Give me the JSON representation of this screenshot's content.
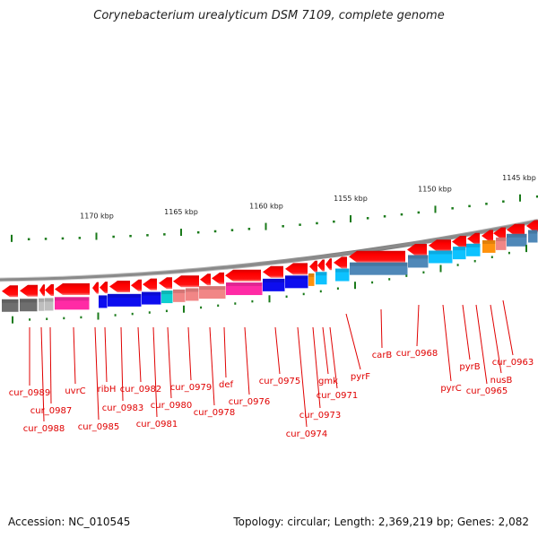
{
  "title": "Corynebacterium urealyticum DSM 7109, complete genome",
  "footer": {
    "accession": "Accession: NC_010545",
    "summary": "Topology: circular; Length: 2,369,219 bp; Genes: 2,082"
  },
  "colors": {
    "gene_arrow": "#ff0000",
    "backbone": "#8a8a8a",
    "tick": "#1a7a1a",
    "label": "#e00000"
  },
  "scale": {
    "unit": "kbp",
    "labels": [
      {
        "text": "1170 kbp",
        "value": 1170
      },
      {
        "text": "1165 kbp",
        "value": 1165
      },
      {
        "text": "1160 kbp",
        "value": 1160
      },
      {
        "text": "1155 kbp",
        "value": 1155
      },
      {
        "text": "1150 kbp",
        "value": 1150
      },
      {
        "text": "1145 kbp",
        "value": 1145
      }
    ]
  },
  "cog_bands": [
    {
      "color": "#666666"
    },
    {
      "color": "#666666"
    },
    {
      "color": "#bbbbbb"
    },
    {
      "color": "#bbbbbb"
    },
    {
      "color": "#ff1fa0"
    },
    {
      "color": "#0000ee"
    },
    {
      "color": "#0000ee"
    },
    {
      "color": "#0000ee"
    },
    {
      "color": "#00cccc"
    },
    {
      "color": "#f08080"
    },
    {
      "color": "#f08080"
    },
    {
      "color": "#f08080"
    },
    {
      "color": "#ff1fa0"
    },
    {
      "color": "#0000ee"
    },
    {
      "color": "#0000ee"
    },
    {
      "color": "#ff8c00"
    },
    {
      "color": "#00bfff"
    },
    {
      "color": "#00bfff"
    },
    {
      "color": "#4682b4"
    },
    {
      "color": "#4682b4"
    },
    {
      "color": "#00bfff"
    },
    {
      "color": "#00bfff"
    },
    {
      "color": "#00bfff"
    },
    {
      "color": "#ff8c00"
    },
    {
      "color": "#f08080"
    },
    {
      "color": "#4682b4"
    },
    {
      "color": "#4682b4"
    }
  ],
  "genes": [
    {
      "name": "cur_0989"
    },
    {
      "name": "cur_0988"
    },
    {
      "name": "cur_0987"
    },
    {
      "name": "uvrC"
    },
    {
      "name": "cur_0985"
    },
    {
      "name": "ribH"
    },
    {
      "name": "cur_0983"
    },
    {
      "name": "cur_0982"
    },
    {
      "name": "cur_0981"
    },
    {
      "name": "cur_0980"
    },
    {
      "name": "cur_0979"
    },
    {
      "name": "cur_0978"
    },
    {
      "name": "def"
    },
    {
      "name": "cur_0976"
    },
    {
      "name": "cur_0975"
    },
    {
      "name": "cur_0974"
    },
    {
      "name": "cur_0973"
    },
    {
      "name": "gmk"
    },
    {
      "name": "cur_0971"
    },
    {
      "name": "pyrF"
    },
    {
      "name": "carB"
    },
    {
      "name": "cur_0968"
    },
    {
      "name": "pyrC"
    },
    {
      "name": "pyrB"
    },
    {
      "name": "cur_0965"
    },
    {
      "name": "nusB"
    },
    {
      "name": "cur_0963"
    }
  ]
}
